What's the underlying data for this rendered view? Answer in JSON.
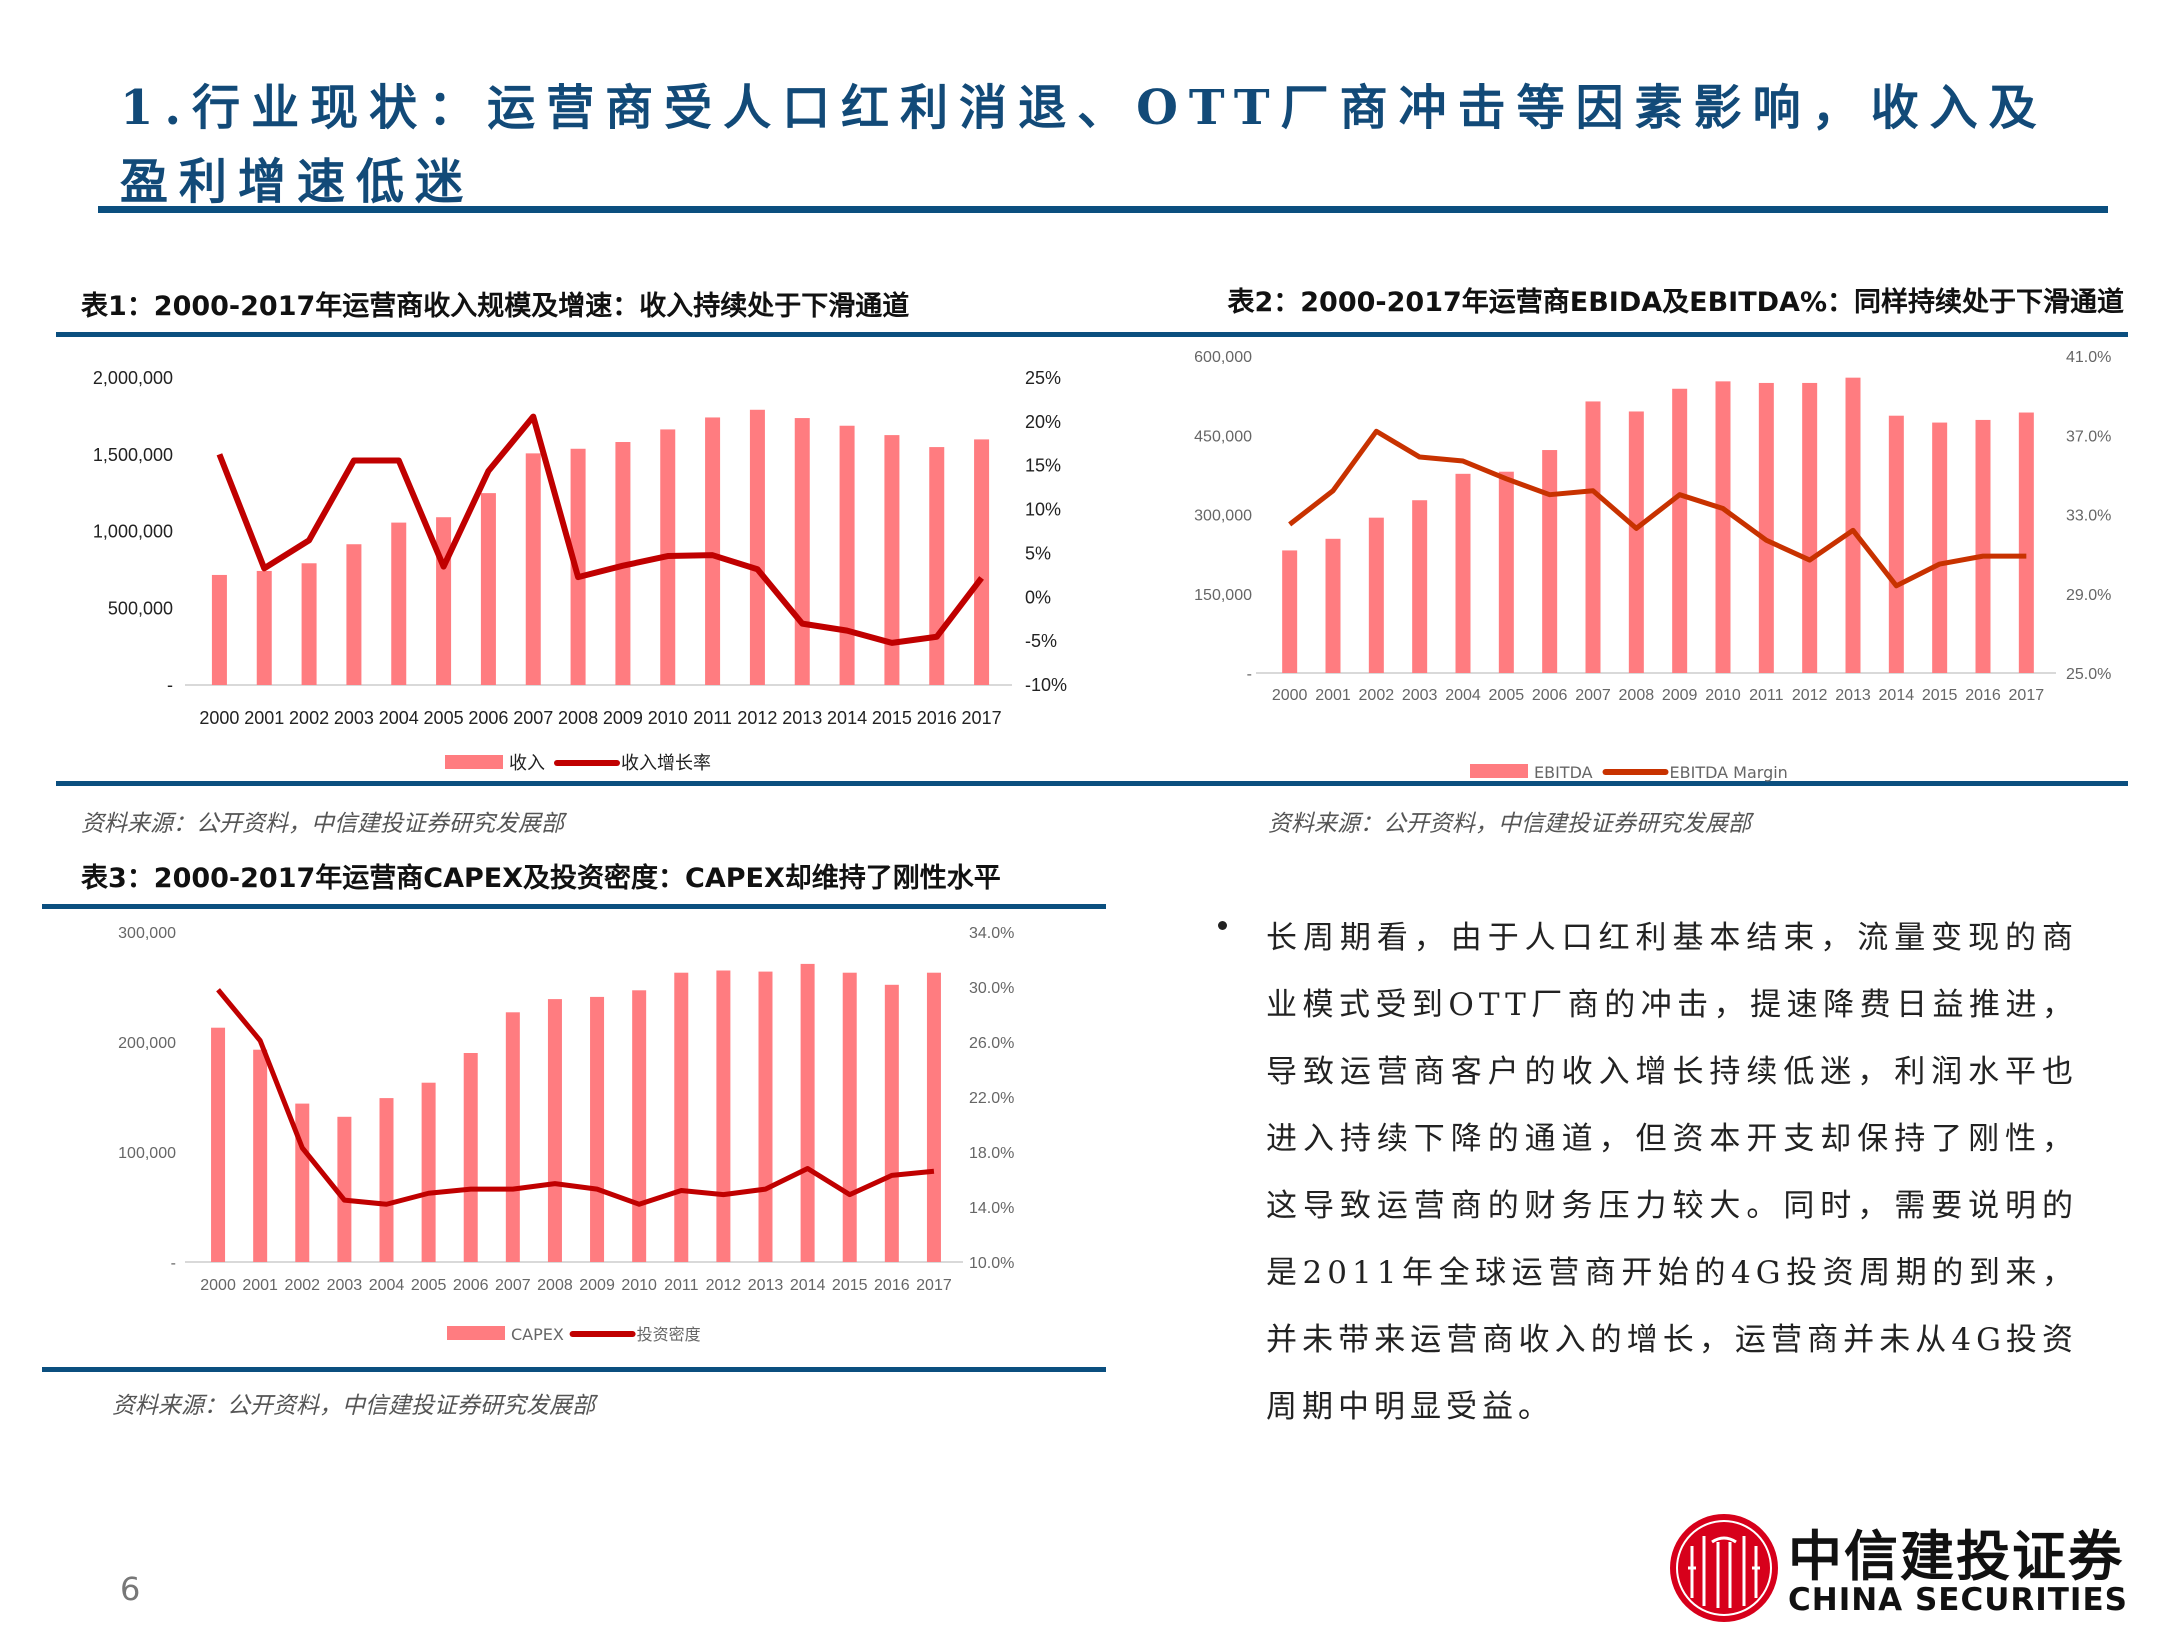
{
  "header": {
    "title_line1": "1.行业现状：运营商受人口红利消退、OTT厂商冲击等因素影响，收入及",
    "title_line2": "盈利增速低迷"
  },
  "colors": {
    "accent": "#0b4f7f",
    "bar": "#ff7c80",
    "line_red": "#c00000",
    "line_orange": "#c83200"
  },
  "sources": {
    "chart1": "资料来源：公开资料，中信建投证券研究发展部",
    "chart2": "资料来源：公开资料，中信建投证券研究发展部",
    "chart3": "资料来源：公开资料，中信建投证券研究发展部"
  },
  "body": {
    "bullet": "长周期看，由于人口红利基本结束，流量变现的商业模式受到OTT厂商的冲击，提速降费日益推进，导致运营商客户的收入增长持续低迷，利润水平也进入持续下降的通道，但资本开支却保持了刚性，这导致运营商的财务压力较大。同时，需要说明的是2011年全球运营商开始的4G投资周期的到来，并未带来运营商收入的增长，运营商并未从4G投资周期中明显受益。"
  },
  "footer": {
    "page_number": "6",
    "logo_cn": "中信建投证券",
    "logo_en": "CHINA SECURITIES"
  },
  "chart_data": [
    {
      "type": "bar+line",
      "title": "表1：2000-2017年运营商收入规模及增速：收入持续处于下滑通道",
      "categories": [
        "2000",
        "2001",
        "2002",
        "2003",
        "2004",
        "2005",
        "2006",
        "2007",
        "2008",
        "2009",
        "2010",
        "2011",
        "2012",
        "2013",
        "2014",
        "2015",
        "2016",
        "2017"
      ],
      "series": [
        {
          "name": "收入",
          "kind": "bar",
          "axis": "left",
          "values": [
            717000,
            743000,
            793000,
            917000,
            1058000,
            1093000,
            1250000,
            1509000,
            1539000,
            1583000,
            1665000,
            1743000,
            1793000,
            1739000,
            1689000,
            1628000,
            1550000,
            1600000
          ]
        },
        {
          "name": "收入增长率",
          "kind": "line",
          "axis": "right",
          "values": [
            16.3,
            3.3,
            6.5,
            15.6,
            15.6,
            3.5,
            14.4,
            20.6,
            2.3,
            3.6,
            4.7,
            4.8,
            3.2,
            -3.0,
            -3.8,
            -5.2,
            -4.5,
            2.2
          ]
        }
      ],
      "left_axis": {
        "range": [
          0,
          2000000
        ],
        "ticks": [
          "-",
          "500,000",
          "1,000,000",
          "1,500,000",
          "2,000,000"
        ]
      },
      "right_axis": {
        "range": [
          -10,
          25
        ],
        "ticks": [
          "-10%",
          "-5%",
          "0%",
          "5%",
          "10%",
          "15%",
          "20%",
          "25%"
        ]
      },
      "grid": false,
      "legend": "bottom"
    },
    {
      "type": "bar+line",
      "title": "表2：2000-2017年运营商EBIDA及EBITDA%：同样持续处于下滑通道",
      "categories": [
        "2000",
        "2001",
        "2002",
        "2003",
        "2004",
        "2005",
        "2006",
        "2007",
        "2008",
        "2009",
        "2010",
        "2011",
        "2012",
        "2013",
        "2014",
        "2015",
        "2016",
        "2017"
      ],
      "series": [
        {
          "name": "EBITDA",
          "kind": "bar",
          "axis": "left",
          "values": [
            232000,
            254000,
            294000,
            327000,
            377000,
            381000,
            422000,
            514000,
            495000,
            538000,
            552000,
            549000,
            549000,
            559000,
            487000,
            474000,
            479000,
            493000
          ]
        },
        {
          "name": "EBITDA Margin",
          "kind": "line",
          "axis": "right",
          "values": [
            32.5,
            34.2,
            37.2,
            35.9,
            35.7,
            34.8,
            34.0,
            34.2,
            32.3,
            34.0,
            33.3,
            31.7,
            30.7,
            32.2,
            29.4,
            30.5,
            30.9,
            30.9
          ]
        }
      ],
      "left_axis": {
        "range": [
          0,
          600000
        ],
        "ticks": [
          "-",
          "150,000",
          "300,000",
          "450,000",
          "600,000"
        ]
      },
      "right_axis": {
        "range": [
          25,
          41
        ],
        "ticks": [
          "25.0%",
          "29.0%",
          "33.0%",
          "37.0%",
          "41.0%"
        ]
      },
      "grid": false,
      "legend": "bottom"
    },
    {
      "type": "bar+line",
      "title": "表3：2000-2017年运营商CAPEX及投资密度：CAPEX却维持了刚性水平",
      "categories": [
        "2000",
        "2001",
        "2002",
        "2003",
        "2004",
        "2005",
        "2006",
        "2007",
        "2008",
        "2009",
        "2010",
        "2011",
        "2012",
        "2013",
        "2014",
        "2015",
        "2016",
        "2017"
      ],
      "series": [
        {
          "name": "CAPEX",
          "kind": "bar",
          "axis": "left",
          "values": [
            213000,
            193000,
            144000,
            132000,
            149000,
            163000,
            190000,
            227000,
            239000,
            241000,
            247000,
            263000,
            265000,
            264000,
            271000,
            263000,
            252000,
            263000
          ]
        },
        {
          "name": "投资密度",
          "kind": "line",
          "axis": "right",
          "values": [
            29.8,
            26.1,
            18.3,
            14.5,
            14.2,
            15.0,
            15.3,
            15.3,
            15.7,
            15.3,
            14.2,
            15.2,
            14.9,
            15.3,
            16.8,
            14.9,
            16.3,
            16.6
          ]
        }
      ],
      "left_axis": {
        "range": [
          0,
          300000
        ],
        "ticks": [
          "-",
          "100,000",
          "200,000",
          "300,000"
        ]
      },
      "right_axis": {
        "range": [
          10,
          34
        ],
        "ticks": [
          "10.0%",
          "14.0%",
          "18.0%",
          "22.0%",
          "26.0%",
          "30.0%",
          "34.0%"
        ]
      },
      "grid": false,
      "legend": "bottom"
    }
  ]
}
